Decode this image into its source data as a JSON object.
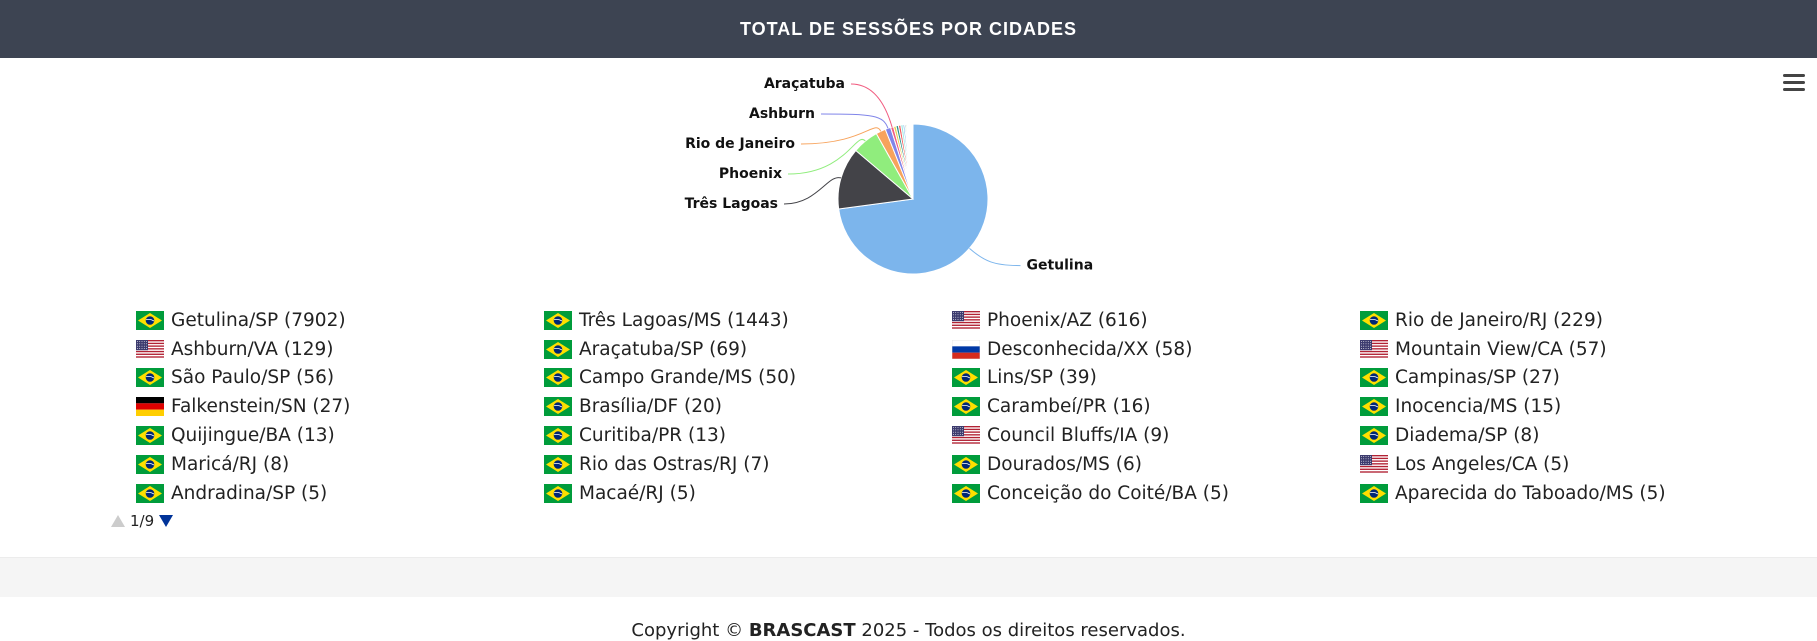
{
  "header": {
    "title": "TOTAL DE SESSÕES POR CIDADES"
  },
  "menu": {
    "icon": "hamburger-menu-icon"
  },
  "chart_data": {
    "type": "pie",
    "slices": [
      {
        "name": "Getulina",
        "value": 7902,
        "color": "#7cb5ec",
        "label_shown": true
      },
      {
        "name": "Três Lagoas",
        "value": 1443,
        "color": "#434348",
        "label_shown": true
      },
      {
        "name": "Phoenix",
        "value": 616,
        "color": "#90ed7d",
        "label_shown": true
      },
      {
        "name": "Rio de Janeiro",
        "value": 229,
        "color": "#f7a35c",
        "label_shown": true
      },
      {
        "name": "Ashburn",
        "value": 129,
        "color": "#8085e9",
        "label_shown": true
      },
      {
        "name": "Araçatuba",
        "value": 69,
        "color": "#f15c80",
        "label_shown": true
      },
      {
        "name": "Desconhecida",
        "value": 58,
        "color": "#e4d354",
        "label_shown": false
      },
      {
        "name": "Mountain View",
        "value": 57,
        "color": "#2b908f",
        "label_shown": false
      },
      {
        "name": "São Paulo",
        "value": 56,
        "color": "#f45b5b",
        "label_shown": false
      },
      {
        "name": "Campo Grande",
        "value": 50,
        "color": "#91e8e1",
        "label_shown": false
      },
      {
        "name": "Lins",
        "value": 39,
        "color": "#7cb5ec",
        "label_shown": false
      },
      {
        "name": "Campinas",
        "value": 27,
        "color": "#434348",
        "label_shown": false
      },
      {
        "name": "Falkenstein",
        "value": 27,
        "color": "#90ed7d",
        "label_shown": false
      },
      {
        "name": "Brasília",
        "value": 20,
        "color": "#f7a35c",
        "label_shown": false
      },
      {
        "name": "Carambeí",
        "value": 16,
        "color": "#8085e9",
        "label_shown": false
      },
      {
        "name": "Inocencia",
        "value": 15,
        "color": "#f15c80",
        "label_shown": false
      },
      {
        "name": "Quijingue",
        "value": 13,
        "color": "#e4d354",
        "label_shown": false
      },
      {
        "name": "Curitiba",
        "value": 13,
        "color": "#2b908f",
        "label_shown": false
      },
      {
        "name": "Council Bluffs",
        "value": 9,
        "color": "#f45b5b",
        "label_shown": false
      },
      {
        "name": "Diadema",
        "value": 8,
        "color": "#91e8e1",
        "label_shown": false
      },
      {
        "name": "Maricá",
        "value": 8,
        "color": "#7cb5ec",
        "label_shown": false
      },
      {
        "name": "Rio das Ostras",
        "value": 7,
        "color": "#434348",
        "label_shown": false
      },
      {
        "name": "Dourados",
        "value": 6,
        "color": "#90ed7d",
        "label_shown": false
      },
      {
        "name": "Los Angeles",
        "value": 5,
        "color": "#f7a35c",
        "label_shown": false
      },
      {
        "name": "Andradina",
        "value": 5,
        "color": "#8085e9",
        "label_shown": false
      },
      {
        "name": "Macaé",
        "value": 5,
        "color": "#f15c80",
        "label_shown": false
      },
      {
        "name": "Conceição do Coité",
        "value": 5,
        "color": "#e4d354",
        "label_shown": false
      },
      {
        "name": "Aparecida do Taboado",
        "value": 5,
        "color": "#2b908f",
        "label_shown": false
      }
    ],
    "legend": {
      "placement": "bottom",
      "items": [
        {
          "label": "Getulina/SP (7902)",
          "flag": "br"
        },
        {
          "label": "Três Lagoas/MS (1443)",
          "flag": "br"
        },
        {
          "label": "Phoenix/AZ (616)",
          "flag": "us"
        },
        {
          "label": "Rio de Janeiro/RJ (229)",
          "flag": "br"
        },
        {
          "label": "Ashburn/VA (129)",
          "flag": "us"
        },
        {
          "label": "Araçatuba/SP (69)",
          "flag": "br"
        },
        {
          "label": "Desconhecida/XX (58)",
          "flag": "ru"
        },
        {
          "label": "Mountain View/CA (57)",
          "flag": "us"
        },
        {
          "label": "São Paulo/SP (56)",
          "flag": "br"
        },
        {
          "label": "Campo Grande/MS (50)",
          "flag": "br"
        },
        {
          "label": "Lins/SP (39)",
          "flag": "br"
        },
        {
          "label": "Campinas/SP (27)",
          "flag": "br"
        },
        {
          "label": "Falkenstein/SN (27)",
          "flag": "de"
        },
        {
          "label": "Brasília/DF (20)",
          "flag": "br"
        },
        {
          "label": "Carambeí/PR (16)",
          "flag": "br"
        },
        {
          "label": "Inocencia/MS (15)",
          "flag": "br"
        },
        {
          "label": "Quijingue/BA (13)",
          "flag": "br"
        },
        {
          "label": "Curitiba/PR (13)",
          "flag": "br"
        },
        {
          "label": "Council Bluffs/IA (9)",
          "flag": "us"
        },
        {
          "label": "Diadema/SP (8)",
          "flag": "br"
        },
        {
          "label": "Maricá/RJ (8)",
          "flag": "br"
        },
        {
          "label": "Rio das Ostras/RJ (7)",
          "flag": "br"
        },
        {
          "label": "Dourados/MS (6)",
          "flag": "br"
        },
        {
          "label": "Los Angeles/CA (5)",
          "flag": "us"
        },
        {
          "label": "Andradina/SP (5)",
          "flag": "br"
        },
        {
          "label": "Macaé/RJ (5)",
          "flag": "br"
        },
        {
          "label": "Conceição do Coité/BA (5)",
          "flag": "br"
        },
        {
          "label": "Aparecida do Taboado/MS (5)",
          "flag": "br"
        }
      ]
    },
    "pagination": {
      "text": "1/9",
      "current": 1,
      "total": 9
    }
  },
  "footer": {
    "prefix": "Copyright © ",
    "brand": "BRASCAST",
    "suffix": " 2025 - Todos os direitos reservados."
  }
}
